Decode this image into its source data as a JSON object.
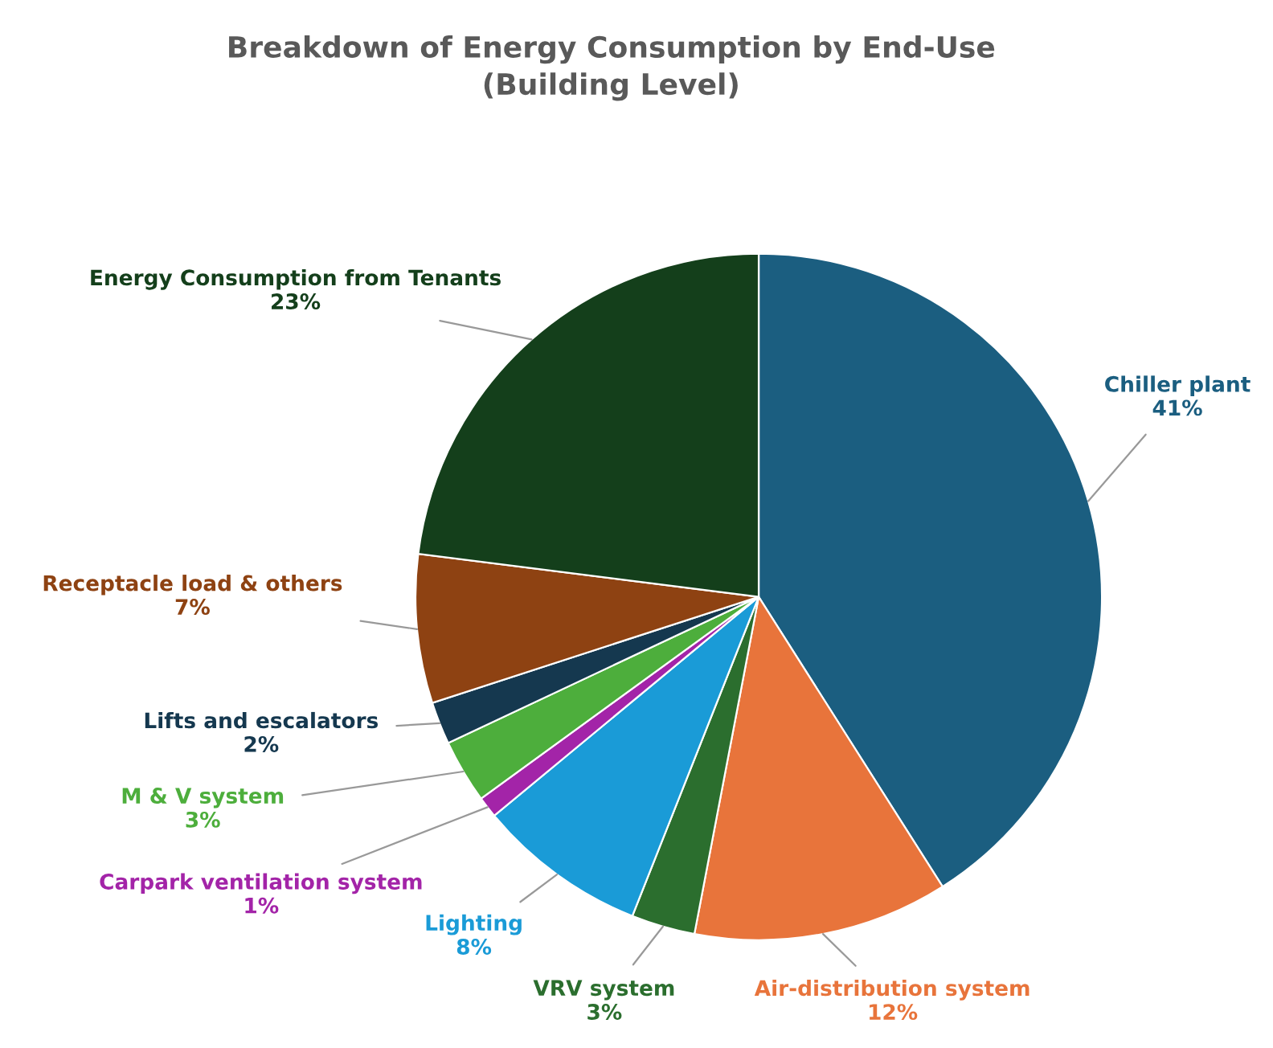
{
  "chart_data": {
    "type": "pie",
    "title": "Breakdown of Energy Consumption by End-Use\n(Building Level)",
    "categories": [
      "Chiller plant",
      "Air-distribution system",
      "VRV system",
      "Lighting",
      "Carpark ventilation system",
      "M & V system",
      "Lifts and escalators",
      "Receptacle load & others",
      "Energy Consumption from Tenants"
    ],
    "values": [
      41,
      12,
      3,
      8,
      1,
      3,
      2,
      7,
      23
    ],
    "value_labels": [
      "41%",
      "12%",
      "3%",
      "8%",
      "1%",
      "3%",
      "2%",
      "7%",
      "23%"
    ],
    "colors": [
      "#1b5e80",
      "#e8743b",
      "#2b6e2e",
      "#1a9bd7",
      "#a324a8",
      "#4dae3c",
      "#15384f",
      "#8e4212",
      "#143f1b"
    ],
    "legend": false
  }
}
